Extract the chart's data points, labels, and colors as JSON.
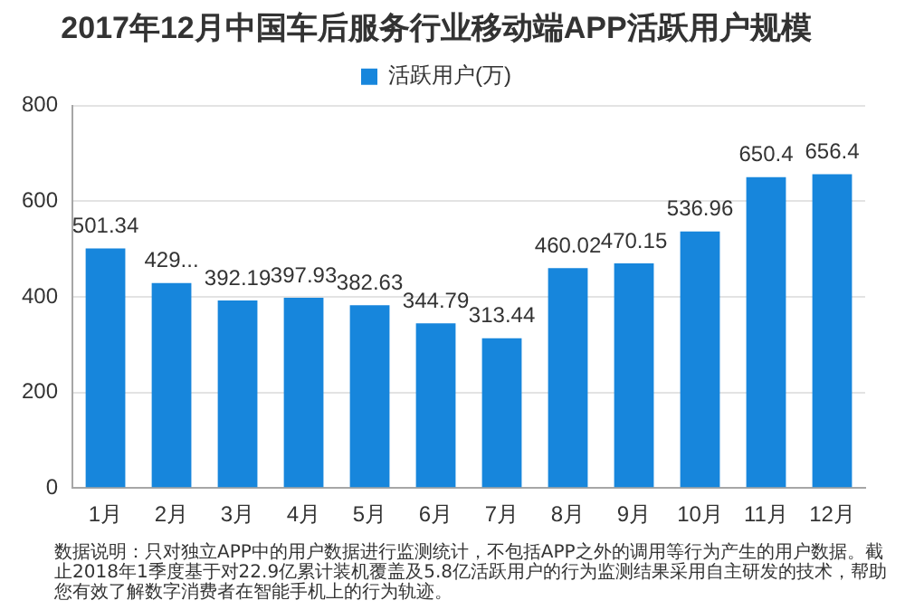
{
  "chart_data": {
    "type": "bar",
    "title": "2017年12月中国车后服务行业移动端APP活跃用户规模",
    "categories": [
      "1月",
      "2月",
      "3月",
      "4月",
      "5月",
      "6月",
      "7月",
      "8月",
      "9月",
      "10月",
      "11月",
      "12月"
    ],
    "series": [
      {
        "name": "活跃用户(万)",
        "color": "#1786dc",
        "values": [
          501.34,
          429,
          392.19,
          397.93,
          382.63,
          344.79,
          313.44,
          460.02,
          470.15,
          536.96,
          650.4,
          656.4
        ],
        "value_labels": [
          "501.34",
          "429...",
          "392.19",
          "397.93",
          "382.63",
          "344.79",
          "313.44",
          "460.02",
          "470.15",
          "536.96",
          "650.4",
          "656.4"
        ]
      }
    ],
    "ylim": [
      0,
      800
    ],
    "yticks": [
      0,
      200,
      400,
      600,
      800
    ],
    "grid": "y",
    "legend": "top",
    "annotations": [
      "数据说明：只对独立APP中的用户数据进行监测统计，不包括APP之外的调用等行为产生的用户数据。截止2018年1季度基于对22.9亿累计装机覆盖及5.8亿活跃用户的行为监测结果采用自主研发的技术，帮助您有效了解数字消费者在智能手机上的行为轨迹。"
    ]
  }
}
